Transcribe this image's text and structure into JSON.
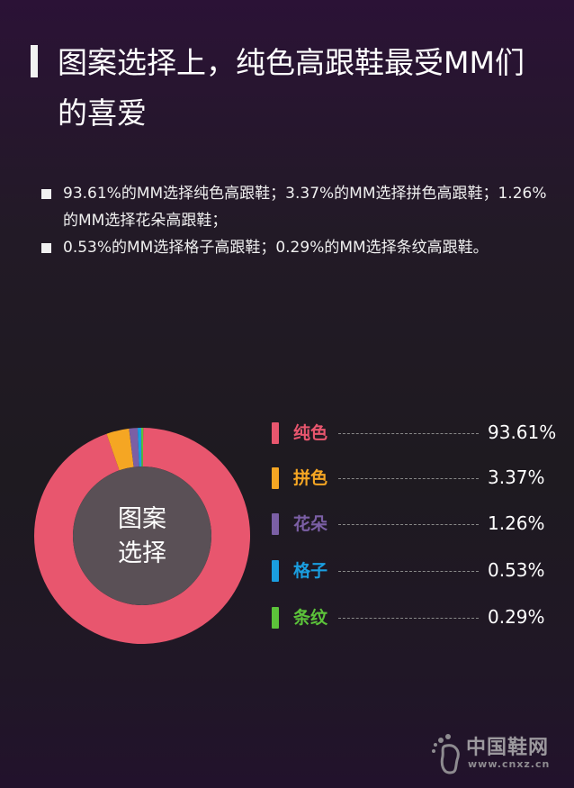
{
  "header": {
    "title": "图案选择上，纯色高跟鞋最受MM们的喜爱"
  },
  "bullets": [
    "93.61%的MM选择纯色高跟鞋；3.37%的MM选择拼色高跟鞋；1.26%的MM选择花朵高跟鞋；",
    "0.53%的MM选择格子高跟鞋；0.29%的MM选择条纹高跟鞋。"
  ],
  "chart_data": {
    "type": "pie",
    "donut": true,
    "center_label_line1": "图案",
    "center_label_line2": "选择",
    "legend_position": "right",
    "categories": [
      "纯色",
      "拼色",
      "花朵",
      "格子",
      "条纹"
    ],
    "values": [
      93.61,
      3.37,
      1.26,
      0.53,
      0.29
    ],
    "value_labels": [
      "93.61%",
      "3.37%",
      "1.26%",
      "0.53%",
      "0.29%"
    ],
    "colors": [
      "#e8566e",
      "#f5a623",
      "#7b5fa5",
      "#1a9ee0",
      "#5cc33a"
    ]
  },
  "logo": {
    "name": "中国鞋网",
    "url": "www.cnxz.cn"
  }
}
